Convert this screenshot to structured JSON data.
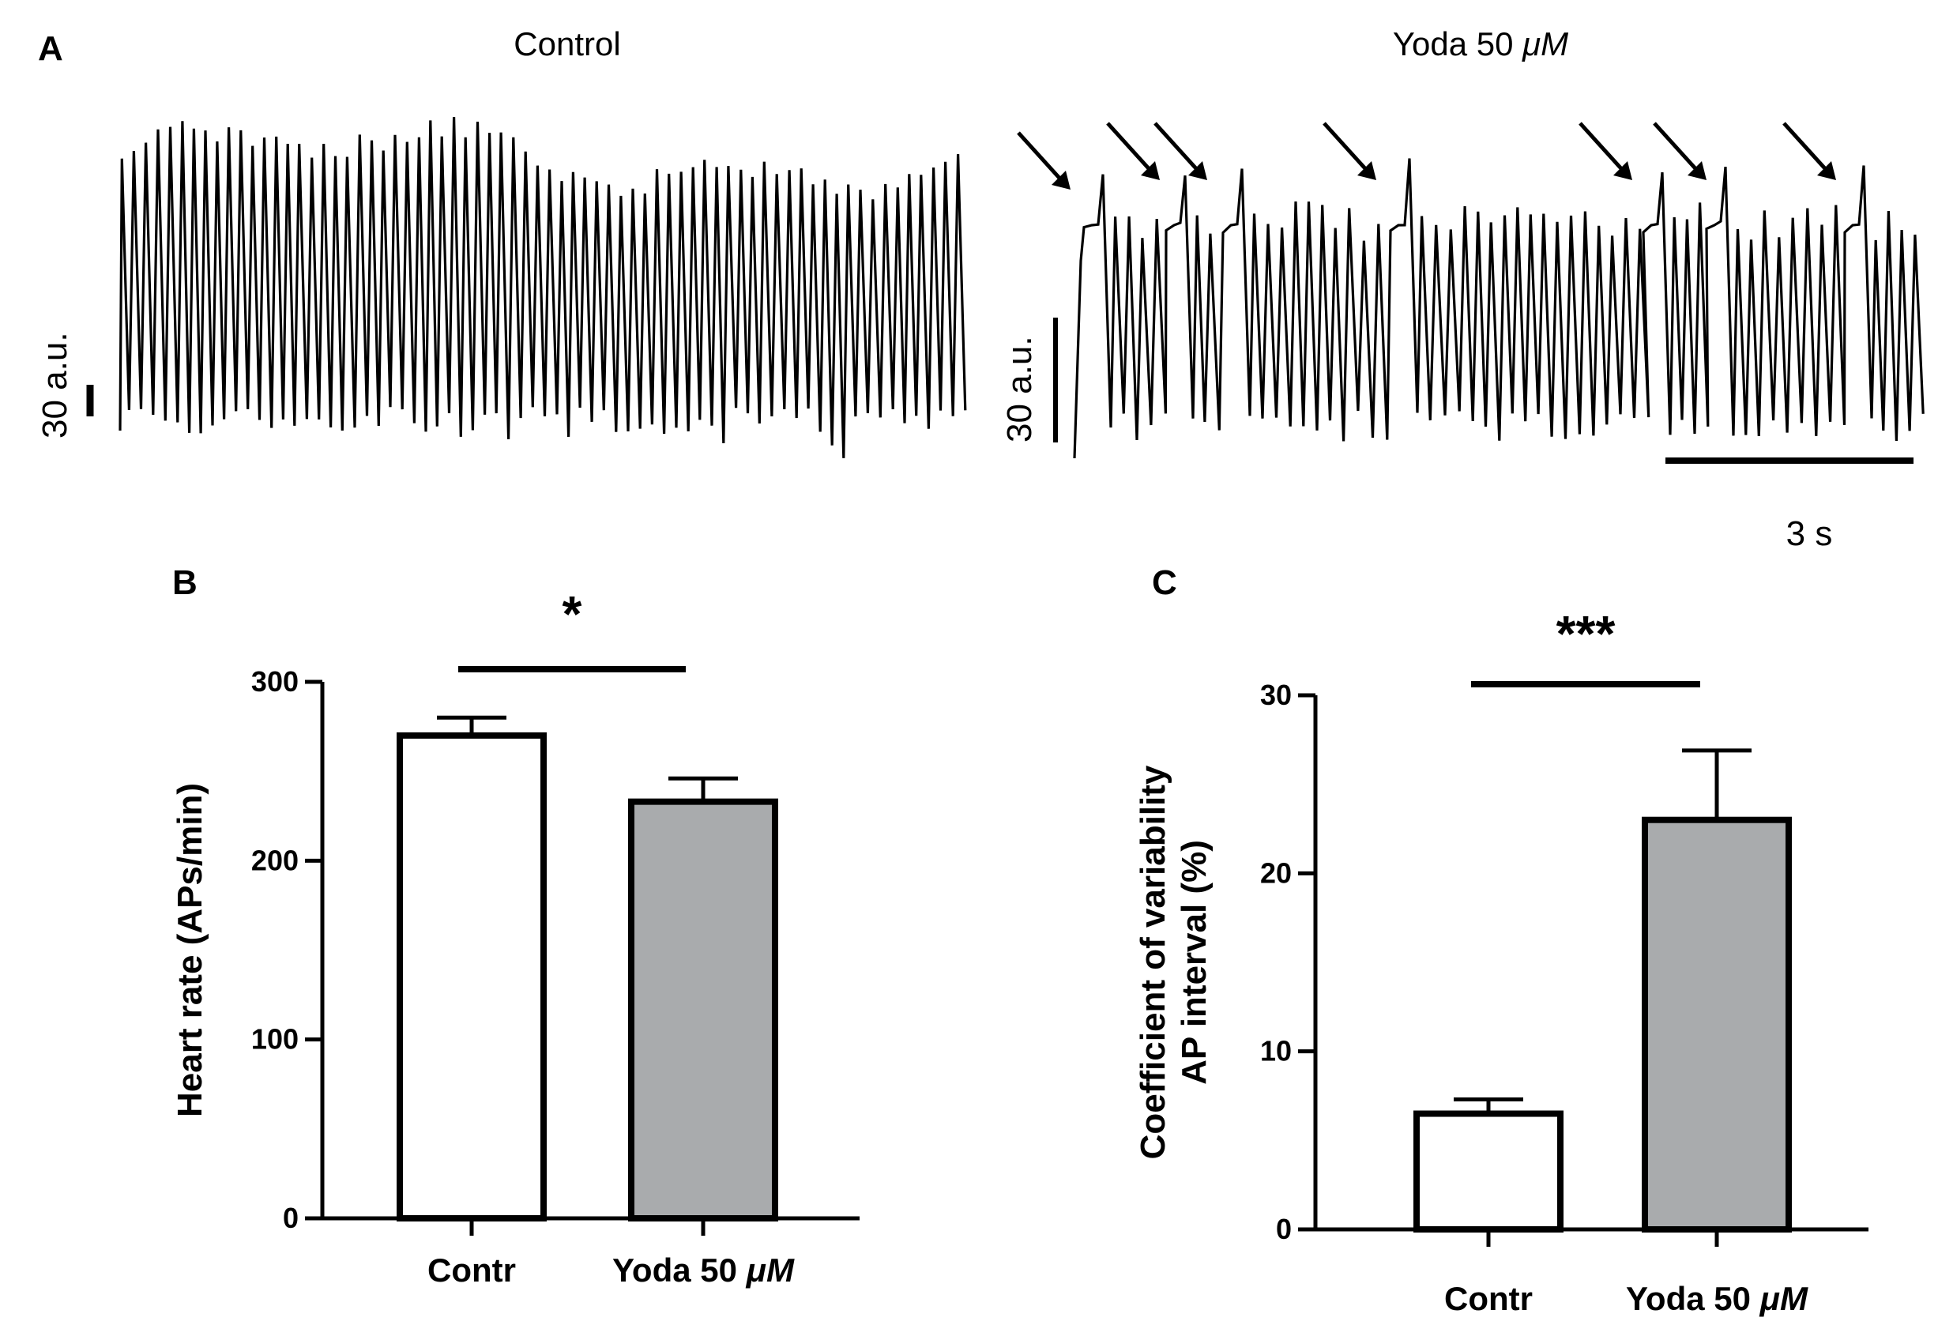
{
  "figure": {
    "panel_a": {
      "letter": "A",
      "control_label": "Control",
      "yoda_label_prefix": "Yoda 50 ",
      "yoda_label_unit": "μM",
      "control_scale_label": "30 a.u.",
      "yoda_scale_label": "30 a.u.",
      "time_scale_label": "3 s",
      "arrow_count": 7
    }
  },
  "colors": {
    "trace": "#000000",
    "bar_control": "#ffffff",
    "bar_yoda": "#a9abad",
    "axis": "#000000"
  },
  "chart_data": [
    {
      "id": "B",
      "letter": "B",
      "type": "bar",
      "ylabel": "Heart rate (APs/min)",
      "ylabel_lines": [
        "Heart rate (APs/min)"
      ],
      "categories": [
        "Contr",
        "Yoda 50 μM"
      ],
      "category_parts": [
        [
          "Contr",
          ""
        ],
        [
          "Yoda 50 ",
          "μM"
        ]
      ],
      "values": [
        270,
        233
      ],
      "errors": [
        10,
        13
      ],
      "ylim": [
        0,
        300
      ],
      "yticks": [
        0,
        100,
        200,
        300
      ],
      "significance": "*"
    },
    {
      "id": "C",
      "letter": "C",
      "type": "bar",
      "ylabel": "Coefficient of variability AP interval (%)",
      "ylabel_lines": [
        "Coefficient of variability",
        "AP interval (%)"
      ],
      "categories": [
        "Contr",
        "Yoda 50 μM"
      ],
      "category_parts": [
        [
          "Contr",
          ""
        ],
        [
          "Yoda 50 ",
          "μM"
        ]
      ],
      "values": [
        6.5,
        23
      ],
      "errors": [
        0.8,
        3.9
      ],
      "ylim": [
        0,
        30
      ],
      "yticks": [
        0,
        10,
        20,
        30
      ],
      "significance": "***"
    }
  ]
}
